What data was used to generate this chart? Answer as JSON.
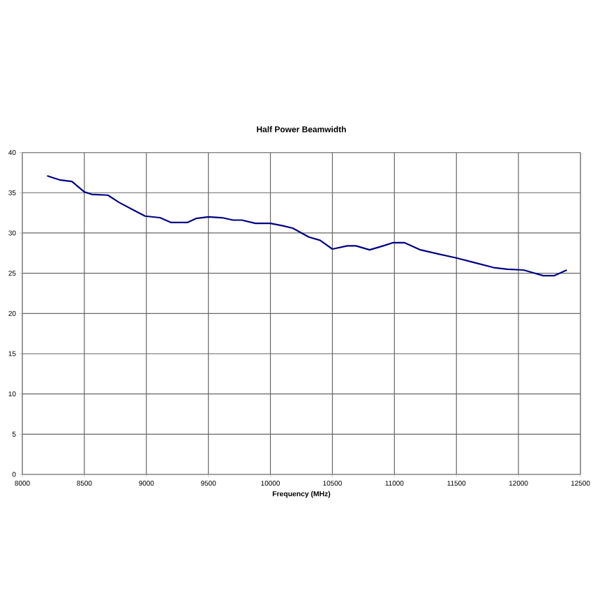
{
  "chart_data": {
    "type": "line",
    "title": "Half Power Beamwidth",
    "xlabel": "Frequency (MHz)",
    "x": [
      8200,
      8300,
      8400,
      8500,
      8560,
      8690,
      8780,
      8890,
      8990,
      9110,
      9200,
      9330,
      9400,
      9500,
      9610,
      9700,
      9770,
      9880,
      10000,
      10100,
      10180,
      10310,
      10400,
      10500,
      10620,
      10690,
      10800,
      10910,
      10990,
      11080,
      11210,
      11350,
      11500,
      11650,
      11800,
      11910,
      12040,
      12110,
      12200,
      12290,
      12390
    ],
    "values": [
      37.1,
      36.6,
      36.4,
      35.1,
      34.8,
      34.7,
      33.8,
      32.9,
      32.1,
      31.9,
      31.3,
      31.3,
      31.8,
      32.0,
      31.9,
      31.6,
      31.6,
      31.2,
      31.2,
      30.9,
      30.6,
      29.5,
      29.1,
      28.0,
      28.4,
      28.4,
      27.9,
      28.4,
      28.8,
      28.8,
      27.9,
      27.4,
      26.9,
      26.3,
      25.7,
      25.5,
      25.4,
      25.1,
      24.7,
      24.7,
      25.4
    ],
    "color": "#000080",
    "line_style": "solid",
    "marker": "none",
    "xlim": [
      8000,
      12500
    ],
    "ylim": [
      0,
      40
    ],
    "xticks": [
      8000,
      8500,
      9000,
      9500,
      10000,
      10500,
      11000,
      11500,
      12000,
      12500
    ],
    "yticks": [
      0,
      5,
      10,
      15,
      20,
      25,
      30,
      35,
      40
    ],
    "grid": true
  }
}
